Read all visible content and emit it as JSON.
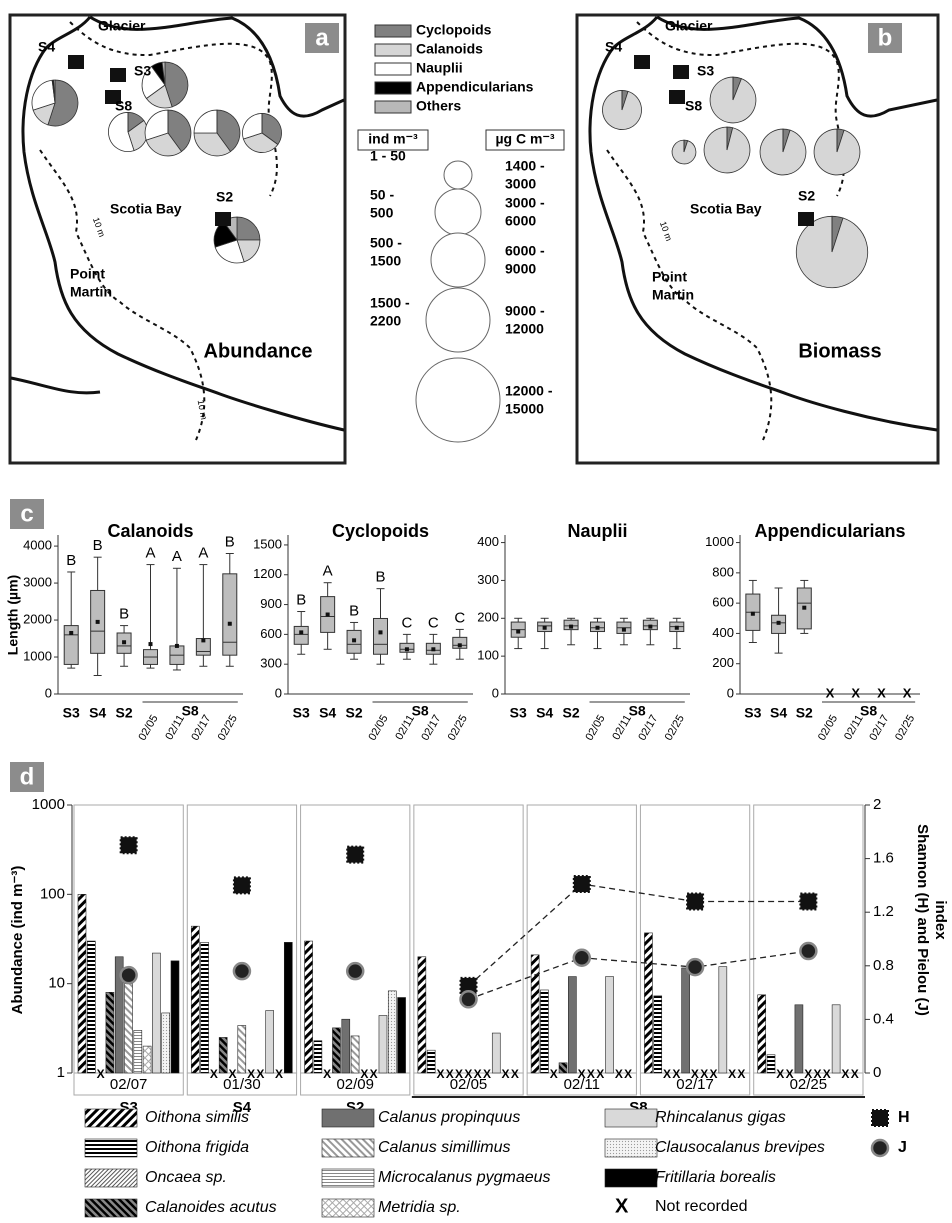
{
  "maps": [
    {
      "panel": "a",
      "title": "Abundance",
      "glacier": "Glacier",
      "bay": "Scotia Bay",
      "point": [
        "Point",
        "Martin"
      ],
      "depth_labels": [
        "10 m",
        "10 m"
      ],
      "stations": [
        "S4",
        "S3",
        "S8",
        "S2"
      ],
      "pies": [
        {
          "station": "S4",
          "size_class": "500 - 1500",
          "values": [
            55,
            15,
            28,
            1,
            1
          ]
        },
        {
          "station": "S3",
          "size_class": "500 - 1500",
          "values": [
            45,
            20,
            25,
            8,
            2
          ]
        },
        {
          "station": "S8 02/05",
          "size_class": "50 - 500",
          "values": [
            15,
            30,
            55,
            0,
            0
          ]
        },
        {
          "station": "S8 02/11",
          "size_class": "500 - 1500",
          "values": [
            40,
            30,
            30,
            0,
            0
          ]
        },
        {
          "station": "S8 02/17",
          "size_class": "500 - 1500",
          "values": [
            40,
            35,
            25,
            0,
            0
          ]
        },
        {
          "station": "S8 02/25",
          "size_class": "50 - 500",
          "values": [
            35,
            35,
            30,
            0,
            0
          ]
        },
        {
          "station": "S2",
          "size_class": "500 - 1500",
          "values": [
            25,
            20,
            25,
            20,
            10
          ]
        }
      ]
    },
    {
      "panel": "b",
      "title": "Biomass",
      "glacier": "Glacier",
      "bay": "Scotia Bay",
      "point": [
        "Point",
        "Martin"
      ],
      "depth_labels": [
        "10 m"
      ],
      "stations": [
        "S4",
        "S3",
        "S8",
        "S2"
      ],
      "pies": [
        {
          "station": "S4",
          "size_class": "3000 - 6000",
          "values": [
            5,
            95,
            0,
            0,
            0
          ]
        },
        {
          "station": "S3",
          "size_class": "6000 - 9000",
          "values": [
            6,
            94,
            0,
            0,
            0
          ]
        },
        {
          "station": "S8 02/05",
          "size_class": "1400 - 3000",
          "values": [
            5,
            95,
            0,
            0,
            0
          ]
        },
        {
          "station": "S8 02/11",
          "size_class": "6000 - 9000",
          "values": [
            4,
            96,
            0,
            0,
            0
          ]
        },
        {
          "station": "S8 02/17",
          "size_class": "6000 - 9000",
          "values": [
            5,
            95,
            0,
            0,
            0
          ]
        },
        {
          "station": "S8 02/25",
          "size_class": "6000 - 9000",
          "values": [
            5,
            95,
            0,
            0,
            0
          ]
        },
        {
          "station": "S2",
          "size_class": "12000 - 15000",
          "values": [
            5,
            95,
            0,
            0,
            0
          ]
        }
      ]
    }
  ],
  "legend": {
    "groups": [
      {
        "name": "Cyclopoids",
        "color": "#808080"
      },
      {
        "name": "Calanoids",
        "color": "#d6d6d6"
      },
      {
        "name": "Nauplii",
        "color": "#ffffff"
      },
      {
        "name": "Appendicularians",
        "color": "#000000"
      },
      {
        "name": "Others",
        "color": "#b8b8b8"
      }
    ],
    "abundance_unit": "ind m⁻³",
    "biomass_unit": "µg C m⁻³",
    "classes": [
      {
        "abundance": [
          "1 - 50"
        ],
        "biomass": [
          "1400 -",
          "3000"
        ]
      },
      {
        "abundance": [
          "50 -",
          "500"
        ],
        "biomass": [
          "3000 -",
          "6000"
        ]
      },
      {
        "abundance": [
          "500 -",
          "1500"
        ],
        "biomass": [
          "6000 -",
          "9000"
        ]
      },
      {
        "abundance": [
          "1500 -",
          "2200"
        ],
        "biomass": [
          "9000 -",
          "12000"
        ]
      },
      {
        "abundance": [],
        "biomass": [
          "12000 -",
          "15000"
        ]
      }
    ]
  },
  "panel_labels": [
    "a",
    "b",
    "c",
    "d"
  ],
  "chart_data": [
    {
      "type": "box",
      "title": "Calanoids",
      "ylabel": "Length (µm)",
      "group": "S8",
      "color": "#bdbdbd",
      "categories": [
        "S3",
        "S4",
        "S2",
        "02/05",
        "02/11",
        "02/17",
        "02/25"
      ],
      "ylim": [
        0,
        4300
      ],
      "yticks": [
        0,
        1000,
        2000,
        3000,
        4000
      ],
      "letters": [
        "B",
        "B",
        "B",
        "A",
        "A",
        "A",
        "B"
      ],
      "boxes": [
        {
          "min": 700,
          "q1": 800,
          "median": 1600,
          "q3": 1850,
          "max": 3300,
          "mean": 1650
        },
        {
          "min": 500,
          "q1": 1100,
          "median": 1700,
          "q3": 2800,
          "max": 3700,
          "mean": 1950
        },
        {
          "min": 750,
          "q1": 1100,
          "median": 1300,
          "q3": 1650,
          "max": 1850,
          "mean": 1400
        },
        {
          "min": 700,
          "q1": 800,
          "median": 1000,
          "q3": 1200,
          "max": 3500,
          "mean": 1350
        },
        {
          "min": 650,
          "q1": 800,
          "median": 1050,
          "q3": 1300,
          "max": 3400,
          "mean": 1300
        },
        {
          "min": 750,
          "q1": 1050,
          "median": 1150,
          "q3": 1500,
          "max": 3500,
          "mean": 1450
        },
        {
          "min": 750,
          "q1": 1050,
          "median": 1400,
          "q3": 3250,
          "max": 3800,
          "mean": 1900
        }
      ]
    },
    {
      "type": "box",
      "title": "Cyclopoids",
      "group": "S8",
      "color": "#bdbdbd",
      "categories": [
        "S3",
        "S4",
        "S2",
        "02/05",
        "02/11",
        "02/17",
        "02/25"
      ],
      "ylim": [
        0,
        1600
      ],
      "yticks": [
        0,
        300,
        600,
        900,
        1200,
        1500
      ],
      "letters": [
        "B",
        "A",
        "B",
        "B",
        "C",
        "C",
        "C"
      ],
      "boxes": [
        {
          "min": 400,
          "q1": 500,
          "median": 600,
          "q3": 680,
          "max": 830,
          "mean": 620
        },
        {
          "min": 450,
          "q1": 620,
          "median": 780,
          "q3": 980,
          "max": 1120,
          "mean": 800
        },
        {
          "min": 350,
          "q1": 410,
          "median": 500,
          "q3": 640,
          "max": 720,
          "mean": 540
        },
        {
          "min": 300,
          "q1": 400,
          "median": 500,
          "q3": 760,
          "max": 1060,
          "mean": 620
        },
        {
          "min": 350,
          "q1": 420,
          "median": 450,
          "q3": 510,
          "max": 600,
          "mean": 450
        },
        {
          "min": 300,
          "q1": 400,
          "median": 440,
          "q3": 510,
          "max": 600,
          "mean": 450
        },
        {
          "min": 350,
          "q1": 460,
          "median": 490,
          "q3": 570,
          "max": 650,
          "mean": 490
        }
      ]
    },
    {
      "type": "box",
      "title": "Nauplii",
      "group": "S8",
      "color": "#bdbdbd",
      "categories": [
        "S3",
        "S4",
        "S2",
        "02/05",
        "02/11",
        "02/17",
        "02/25"
      ],
      "ylim": [
        0,
        420
      ],
      "yticks": [
        0,
        100,
        200,
        300,
        400
      ],
      "boxes": [
        {
          "min": 120,
          "q1": 150,
          "median": 170,
          "q3": 190,
          "max": 200,
          "mean": 165
        },
        {
          "min": 120,
          "q1": 165,
          "median": 180,
          "q3": 190,
          "max": 200,
          "mean": 175
        },
        {
          "min": 130,
          "q1": 170,
          "median": 180,
          "q3": 195,
          "max": 200,
          "mean": 178
        },
        {
          "min": 120,
          "q1": 165,
          "median": 175,
          "q3": 190,
          "max": 200,
          "mean": 175
        },
        {
          "min": 130,
          "q1": 160,
          "median": 175,
          "q3": 190,
          "max": 200,
          "mean": 170
        },
        {
          "min": 130,
          "q1": 170,
          "median": 180,
          "q3": 195,
          "max": 200,
          "mean": 178
        },
        {
          "min": 120,
          "q1": 165,
          "median": 178,
          "q3": 190,
          "max": 200,
          "mean": 175
        }
      ]
    },
    {
      "type": "box",
      "title": "Appendicularians",
      "group": "S8",
      "color": "#bdbdbd",
      "categories": [
        "S3",
        "S4",
        "S2",
        "02/05",
        "02/11",
        "02/17",
        "02/25"
      ],
      "ylim": [
        0,
        1050
      ],
      "yticks": [
        0,
        200,
        400,
        600,
        800,
        1000
      ],
      "boxes": [
        {
          "min": 340,
          "q1": 420,
          "median": 540,
          "q3": 660,
          "max": 750,
          "mean": 530
        },
        {
          "min": 270,
          "q1": 400,
          "median": 470,
          "q3": 520,
          "max": 700,
          "mean": 470
        },
        {
          "min": 400,
          "q1": 430,
          "median": 600,
          "q3": 700,
          "max": 750,
          "mean": 570
        },
        null,
        null,
        null,
        null
      ]
    },
    {
      "type": "bar",
      "log": true,
      "ylabel": "Abundance (ind m⁻³)",
      "y2label": [
        "Shannon (H) and Pielou (J)",
        "index"
      ],
      "ylim": [
        1,
        1000
      ],
      "yticks": [
        1,
        10,
        100,
        1000
      ],
      "y2lim": [
        0,
        2
      ],
      "y2ticks": [
        0,
        0.4,
        0.8,
        1.2,
        1.6,
        2
      ],
      "stations": [
        {
          "name": "S3",
          "dates": [
            "02/07"
          ]
        },
        {
          "name": "S4",
          "dates": [
            "01/30"
          ]
        },
        {
          "name": "S2",
          "dates": [
            "02/09"
          ]
        },
        {
          "name": "S8",
          "dates": [
            "02/05",
            "02/11",
            "02/17",
            "02/25"
          ]
        }
      ],
      "series": [
        {
          "name": "Oithona similis",
          "pattern": "os",
          "values": [
            100,
            44,
            30,
            20,
            21,
            37,
            7.5
          ]
        },
        {
          "name": "Oithona frigida",
          "pattern": "of",
          "values": [
            30,
            29,
            2.3,
            1.8,
            8.5,
            7.3,
            1.6
          ]
        },
        {
          "name": "Oncaea sp.",
          "pattern": "on",
          "values": [
            null,
            null,
            null,
            null,
            null,
            null,
            null
          ]
        },
        {
          "name": "Calanoides acutus",
          "pattern": "ca",
          "values": [
            8,
            2.5,
            3.2,
            null,
            1.3,
            null,
            null
          ]
        },
        {
          "name": "Calanus propinquus",
          "color": "#707070",
          "values": [
            20,
            null,
            4,
            null,
            12,
            15,
            5.8
          ]
        },
        {
          "name": "Calanus simillimus",
          "pattern": "cs",
          "values": [
            10,
            3.4,
            2.6,
            null,
            null,
            null,
            null
          ]
        },
        {
          "name": "Microcalanus pygmaeus",
          "pattern": "mp",
          "values": [
            3,
            null,
            null,
            null,
            null,
            null,
            null
          ]
        },
        {
          "name": "Metridia sp.",
          "pattern": "me",
          "values": [
            2,
            null,
            null,
            null,
            null,
            null,
            null
          ]
        },
        {
          "name": "Rhincalanus gigas",
          "color": "#d9d9d9",
          "values": [
            22,
            5,
            4.4,
            2.8,
            12,
            15.5,
            5.8
          ]
        },
        {
          "name": "Clausocalanus brevipes",
          "pattern": "cb",
          "values": [
            4.7,
            null,
            8.3,
            null,
            null,
            null,
            null
          ]
        },
        {
          "name": "Fritillaria borealis",
          "color": "#000000",
          "values": [
            18,
            29,
            7,
            null,
            null,
            null,
            null
          ]
        }
      ],
      "indices": [
        {
          "name": "H",
          "marker": "square",
          "axis": "y2",
          "values": [
            1.7,
            1.4,
            1.63,
            0.65,
            1.41,
            1.28,
            1.28
          ]
        },
        {
          "name": "J",
          "marker": "circle",
          "axis": "y2",
          "values": [
            0.73,
            0.76,
            0.76,
            0.55,
            0.86,
            0.79,
            0.91
          ]
        }
      ],
      "not_recorded_mark": "X",
      "not_recorded_label": "Not recorded"
    }
  ]
}
